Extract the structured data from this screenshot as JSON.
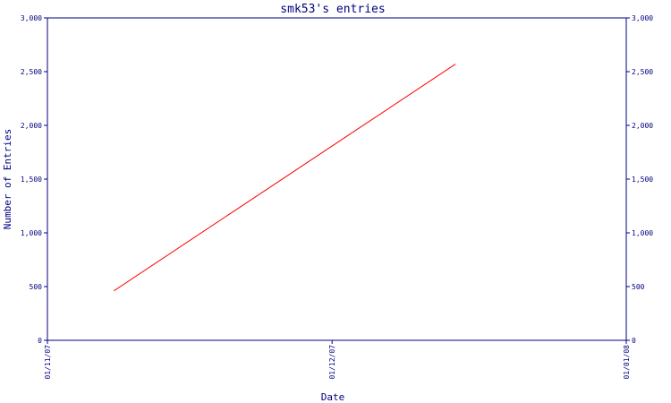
{
  "chart_data": {
    "type": "line",
    "title": "smk53's entries",
    "xlabel": "Date",
    "ylabel": "Number of Entries",
    "x_tick_labels": [
      "01/11/07",
      "01/12/07",
      "01/01/08"
    ],
    "xlim": [
      "2007-11-01",
      "2008-01-01"
    ],
    "ylim": [
      0,
      3000
    ],
    "y_ticks": [
      0,
      500,
      1000,
      1500,
      2000,
      2500,
      3000
    ],
    "y_tick_labels": [
      "0",
      "500",
      "1,000",
      "1,500",
      "2,000",
      "2,500",
      "3,000"
    ],
    "y_axis_right": true,
    "grid": false,
    "series": [
      {
        "color": "#ff0000",
        "x": [
          "2007-11-08",
          "2007-12-14"
        ],
        "values": [
          460,
          2570
        ]
      }
    ]
  },
  "colors": {
    "axis": "#000080",
    "line": "#ff0000",
    "background": "#ffffff"
  }
}
